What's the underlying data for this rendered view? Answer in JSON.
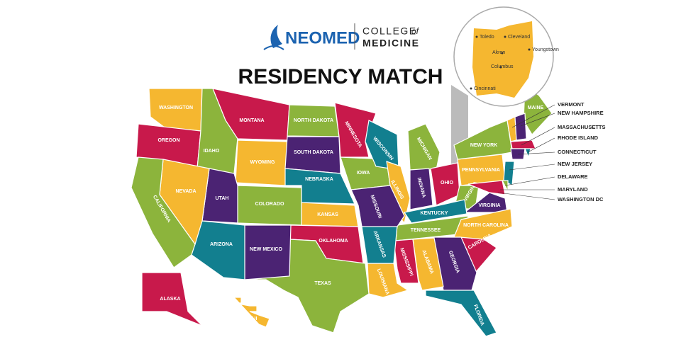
{
  "header": {
    "logo": "NEOMED",
    "college": "COLLEGE",
    "of": "of",
    "medicine": "MEDICINE"
  },
  "title": "RESIDENCY MATCH",
  "states": [
    "WASHINGTON",
    "OREGON",
    "IDAHO",
    "MONTANA",
    "WYOMING",
    "NORTH DAKOTA",
    "SOUTH DAKOTA",
    "MINNESOTA",
    "NEBRASKA",
    "IOWA",
    "WISCONSIN",
    "MICHIGAN",
    "ILLINOIS",
    "INDIANA",
    "OHIO",
    "PENNSYLVANIA",
    "NEW YORK",
    "MAINE",
    "WEST VIRGINIA",
    "VIRGINIA",
    "KENTUCKY",
    "TENNESSEE",
    "NORTH CAROLINA",
    "SOUTH CAROLINA",
    "GEORGIA",
    "ALABAMA",
    "MISSISSIPPI",
    "FLORIDA",
    "LOUISIANA",
    "ARKANSAS",
    "MISSOURI",
    "KANSAS",
    "OKLAHOMA",
    "TEXAS",
    "NEW MEXICO",
    "COLORADO",
    "UTAH",
    "ARIZONA",
    "NEVADA",
    "CALIFORNIA",
    "ALASKA",
    "HAWAII"
  ],
  "callouts": [
    "VERMONT",
    "NEW HAMPSHIRE",
    "MASSACHUSETTS",
    "RHODE ISLAND",
    "CONNECTICUT",
    "NEW JERSEY",
    "DELAWARE",
    "MARYLAND",
    "WASHINGTON DC"
  ],
  "inset": {
    "cities": [
      "Toledo",
      "Cleveland",
      "Youngstown",
      "Akron",
      "Columbus",
      "Cincinnati"
    ]
  }
}
